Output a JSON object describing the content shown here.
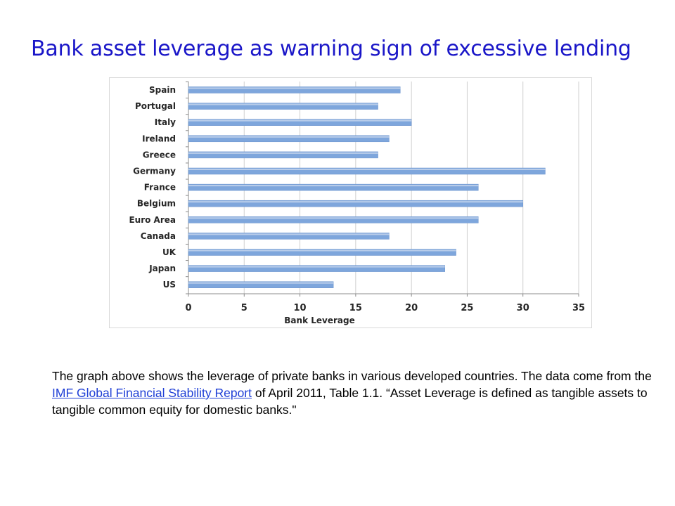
{
  "slide": {
    "title": "Bank asset leverage as warning sign of excessive lending"
  },
  "caption": {
    "part1": "The graph above shows the leverage of private banks in various developed countries.  The data come from the ",
    "link_text": "IMF Global Financial Stability Report",
    "part2": " of April 2011, Table 1.1. “Asset Leverage is defined as tangible assets to tangible common equity for domestic banks.\""
  },
  "colors": {
    "title": "#1a16c8",
    "bar": "#7ea6dc",
    "link": "#1f3fd6"
  },
  "chart_data": {
    "type": "bar",
    "orientation": "horizontal",
    "categories": [
      "Spain",
      "Portugal",
      "Italy",
      "Ireland",
      "Greece",
      "Germany",
      "France",
      "Belgium",
      "Euro Area",
      "Canada",
      "UK",
      "Japan",
      "US"
    ],
    "values": [
      19,
      17,
      20,
      18,
      17,
      32,
      26,
      30,
      26,
      18,
      24,
      23,
      13
    ],
    "xlabel": "Bank Leverage",
    "xlim": [
      0,
      35
    ],
    "xticks": [
      0,
      5,
      10,
      15,
      20,
      25,
      30,
      35
    ],
    "grid": true
  }
}
